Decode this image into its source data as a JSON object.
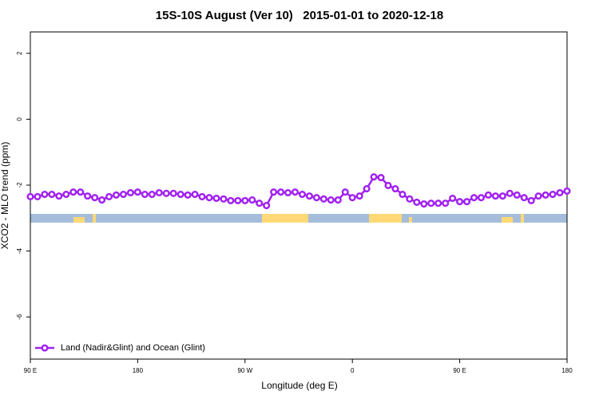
{
  "chart_data": {
    "type": "line",
    "title": "15S-10S August (Ver 10)   2015-01-01 to 2020-12-18",
    "xlabel": "Longitude (deg E)",
    "ylabel": "XCO2 - MLO trend (ppm)",
    "xlim": [
      90,
      540
    ],
    "ylim": [
      -7.28,
      2.65
    ],
    "xticks": [
      {
        "value": 90,
        "label": "90 E"
      },
      180,
      {
        "value": 270,
        "label": "90 W"
      },
      {
        "value": 360,
        "label": "0"
      },
      {
        "value": 450,
        "label": "90 E"
      },
      {
        "value": 540,
        "label": "180"
      }
    ],
    "yticks": [
      -6,
      -4,
      -2,
      0,
      2
    ],
    "legend": "bottom-left",
    "x": [
      90,
      96,
      102,
      108,
      114,
      120,
      126,
      132,
      138,
      144,
      150,
      156,
      162,
      168,
      174,
      180,
      186,
      192,
      198,
      204,
      210,
      216,
      222,
      228,
      234,
      240,
      246,
      252,
      258,
      264,
      270,
      276,
      282,
      288,
      294,
      300,
      306,
      312,
      318,
      324,
      330,
      336,
      342,
      348,
      354,
      360,
      366,
      372,
      378,
      384,
      390,
      396,
      402,
      408,
      414,
      420,
      426,
      432,
      438,
      444,
      450,
      456,
      462,
      468,
      474,
      480,
      486,
      492,
      498,
      504,
      510,
      516,
      522,
      528,
      534,
      540
    ],
    "series": [
      {
        "name": "Land (Nadir&Glint) and Ocean (Glint)",
        "color": "#a020f0",
        "values": [
          -2.35,
          -2.35,
          -2.28,
          -2.28,
          -2.33,
          -2.28,
          -2.21,
          -2.21,
          -2.33,
          -2.38,
          -2.45,
          -2.35,
          -2.3,
          -2.28,
          -2.23,
          -2.21,
          -2.28,
          -2.28,
          -2.23,
          -2.25,
          -2.25,
          -2.28,
          -2.3,
          -2.28,
          -2.35,
          -2.38,
          -2.4,
          -2.42,
          -2.47,
          -2.47,
          -2.47,
          -2.45,
          -2.55,
          -2.62,
          -2.21,
          -2.21,
          -2.23,
          -2.21,
          -2.28,
          -2.33,
          -2.38,
          -2.42,
          -2.45,
          -2.45,
          -2.21,
          -2.38,
          -2.33,
          -2.11,
          -1.75,
          -1.77,
          -2.01,
          -2.11,
          -2.28,
          -2.42,
          -2.52,
          -2.57,
          -2.55,
          -2.55,
          -2.55,
          -2.4,
          -2.5,
          -2.5,
          -2.38,
          -2.38,
          -2.3,
          -2.33,
          -2.33,
          -2.25,
          -2.3,
          -2.38,
          -2.47,
          -2.33,
          -2.3,
          -2.28,
          -2.23,
          -2.18
        ]
      }
    ]
  }
}
